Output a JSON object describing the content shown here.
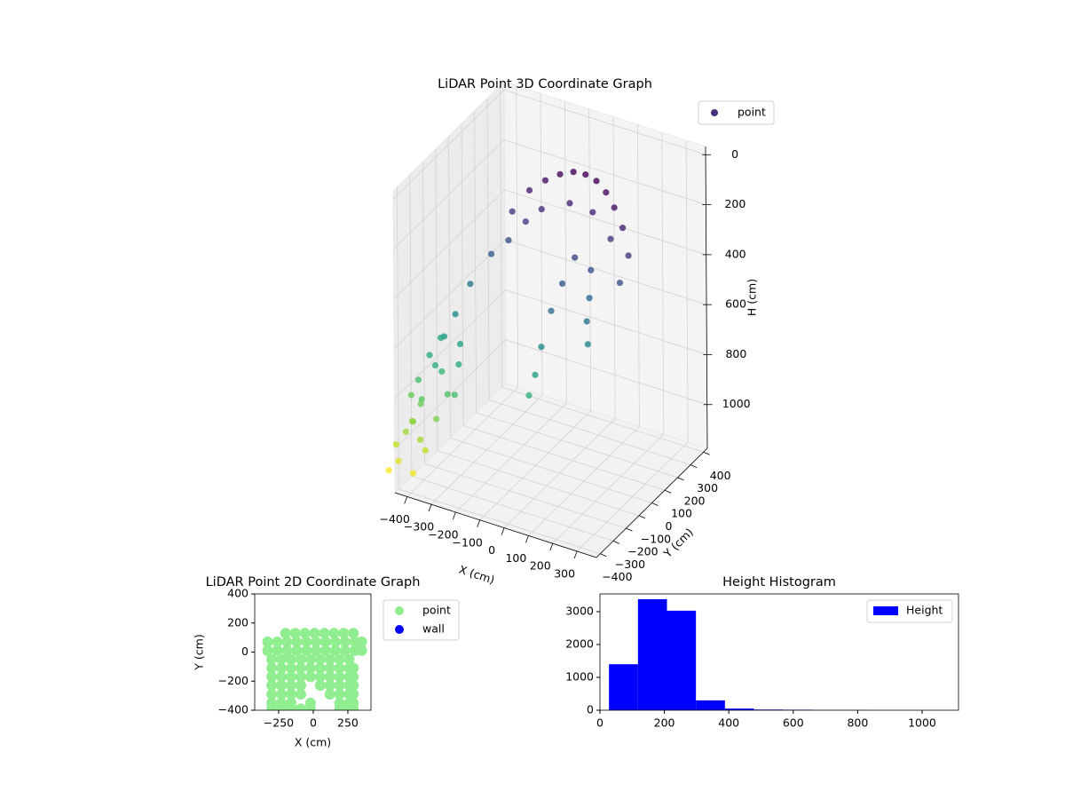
{
  "chart_data": [
    {
      "type": "scatter3d",
      "title": "LiDAR Point 3D Coordinate Graph",
      "xlabel": "X (cm)",
      "ylabel": "Y (cm)",
      "zlabel": "H (cm)",
      "series_name": "point",
      "legend_color": "#46307e",
      "legend": "upper right",
      "cmap": "viridis",
      "x": [
        -200,
        -150,
        -100,
        -50,
        0,
        50,
        100,
        150,
        200,
        250,
        300,
        -200,
        -150,
        -100,
        0,
        100,
        200,
        280,
        -250,
        -300,
        -330,
        -350,
        100,
        80,
        60,
        40,
        30,
        20,
        150,
        170,
        180,
        200,
        -380,
        -400,
        -350,
        -420,
        -380,
        -450,
        -400,
        -430,
        -460,
        -440,
        -480,
        -350,
        -300,
        -320,
        -360,
        -300,
        -280,
        -260,
        -400,
        -420,
        -350,
        -380
      ],
      "y": [
        20,
        60,
        90,
        110,
        120,
        120,
        110,
        90,
        60,
        30,
        -20,
        -10,
        30,
        60,
        90,
        80,
        30,
        -50,
        -50,
        -120,
        -180,
        -230,
        -60,
        -120,
        -170,
        -210,
        -240,
        -270,
        -30,
        -80,
        -120,
        -150,
        -200,
        -250,
        -300,
        -300,
        -350,
        -300,
        -380,
        -380,
        -400,
        -420,
        -420,
        -250,
        -300,
        -350,
        -400,
        -200,
        -250,
        -320,
        -320,
        -350,
        -380,
        -420
      ],
      "z": [
        200,
        120,
        80,
        50,
        30,
        25,
        30,
        50,
        80,
        130,
        200,
        300,
        230,
        180,
        140,
        140,
        190,
        300,
        350,
        450,
        550,
        620,
        250,
        330,
        420,
        550,
        650,
        720,
        300,
        380,
        450,
        520,
        650,
        700,
        700,
        780,
        820,
        850,
        900,
        950,
        1000,
        1050,
        1100,
        750,
        800,
        880,
        950,
        650,
        700,
        780,
        860,
        920,
        1000,
        1080
      ],
      "xlim": [
        -450,
        380
      ],
      "ylim": [
        -430,
        430
      ],
      "zlim": [
        -33,
        1175
      ],
      "z_inverted": true,
      "xticks": [
        {
          "value": -400,
          "label": "−400"
        },
        {
          "value": -300,
          "label": "−300"
        },
        {
          "value": -200,
          "label": "−200"
        },
        {
          "value": -100,
          "label": "−100"
        },
        0,
        100,
        200,
        300
      ],
      "yticks": [
        {
          "value": -400,
          "label": "−400"
        },
        {
          "value": -300,
          "label": "−300"
        },
        {
          "value": -200,
          "label": "−200"
        },
        {
          "value": -100,
          "label": "−100"
        },
        0,
        100,
        200,
        300,
        400
      ],
      "zticks": [
        0,
        200,
        400,
        600,
        800,
        1000
      ],
      "grid": true
    },
    {
      "type": "scatter",
      "title": "LiDAR Point 2D Coordinate Graph",
      "xlabel": "X (cm)",
      "ylabel": "Y (cm)",
      "xlim": [
        -423,
        417
      ],
      "ylim": [
        -400,
        400
      ],
      "xticks": [
        {
          "value": -250,
          "label": "−250"
        },
        0,
        250
      ],
      "yticks": [
        {
          "value": -400,
          "label": "−400"
        },
        {
          "value": -200,
          "label": "−200"
        },
        0,
        200,
        400
      ],
      "legend": "outside right",
      "series": [
        {
          "name": "point",
          "color": "#90ee90",
          "x": [
            -200,
            -130,
            -60,
            10,
            80,
            150,
            220,
            290,
            -330,
            -260,
            -190,
            -120,
            -50,
            20,
            90,
            160,
            230,
            300,
            350,
            -330,
            -260,
            -190,
            -120,
            -50,
            20,
            90,
            160,
            230,
            300,
            350,
            -300,
            -230,
            -160,
            -90,
            -20,
            50,
            120,
            190,
            260,
            -300,
            -230,
            -160,
            -90,
            -20,
            50,
            120,
            190,
            260,
            290,
            -300,
            -230,
            -160,
            -90,
            -20,
            50,
            120,
            190,
            260,
            290,
            -300,
            -230,
            -160,
            -90,
            50,
            120,
            190,
            260,
            290,
            -300,
            -230,
            -160,
            -90,
            120,
            190,
            260,
            290,
            -300,
            -230,
            -160,
            -20,
            190,
            260,
            290,
            -300,
            -230,
            -160,
            -90,
            -20,
            190,
            260,
            290
          ],
          "y": [
            130,
            130,
            130,
            130,
            130,
            130,
            130,
            130,
            70,
            70,
            70,
            70,
            70,
            70,
            70,
            70,
            70,
            70,
            70,
            10,
            10,
            10,
            10,
            10,
            10,
            10,
            10,
            10,
            10,
            10,
            -50,
            -50,
            -50,
            -50,
            -50,
            -50,
            -50,
            -50,
            -50,
            -110,
            -110,
            -110,
            -110,
            -110,
            -110,
            -110,
            -110,
            -110,
            -110,
            -170,
            -170,
            -170,
            -170,
            -170,
            -170,
            -170,
            -170,
            -170,
            -170,
            -230,
            -230,
            -230,
            -230,
            -230,
            -230,
            -230,
            -230,
            -230,
            -290,
            -290,
            -290,
            -290,
            -290,
            -290,
            -290,
            -290,
            -350,
            -350,
            -350,
            -350,
            -350,
            -350,
            -350,
            -390,
            -390,
            -390,
            -390,
            -390,
            -390,
            -390,
            -390
          ]
        },
        {
          "name": "wall",
          "color": "#0000ff",
          "x": [],
          "y": []
        }
      ]
    },
    {
      "type": "histogram",
      "title": "Height Histogram",
      "name": "Height",
      "color": "#0000ff",
      "legend": "upper right",
      "bins": [
        28,
        118,
        208,
        298,
        388,
        478,
        568,
        658,
        748,
        838,
        928,
        1018,
        1108
      ],
      "values": [
        1400,
        3380,
        3030,
        300,
        50,
        20,
        15,
        5,
        2,
        1,
        1,
        1
      ],
      "xlim": [
        0,
        1113
      ],
      "ylim": [
        0,
        3540
      ],
      "xticks": [
        0,
        200,
        400,
        600,
        800,
        1000
      ],
      "yticks": [
        0,
        1000,
        2000,
        3000
      ]
    }
  ]
}
